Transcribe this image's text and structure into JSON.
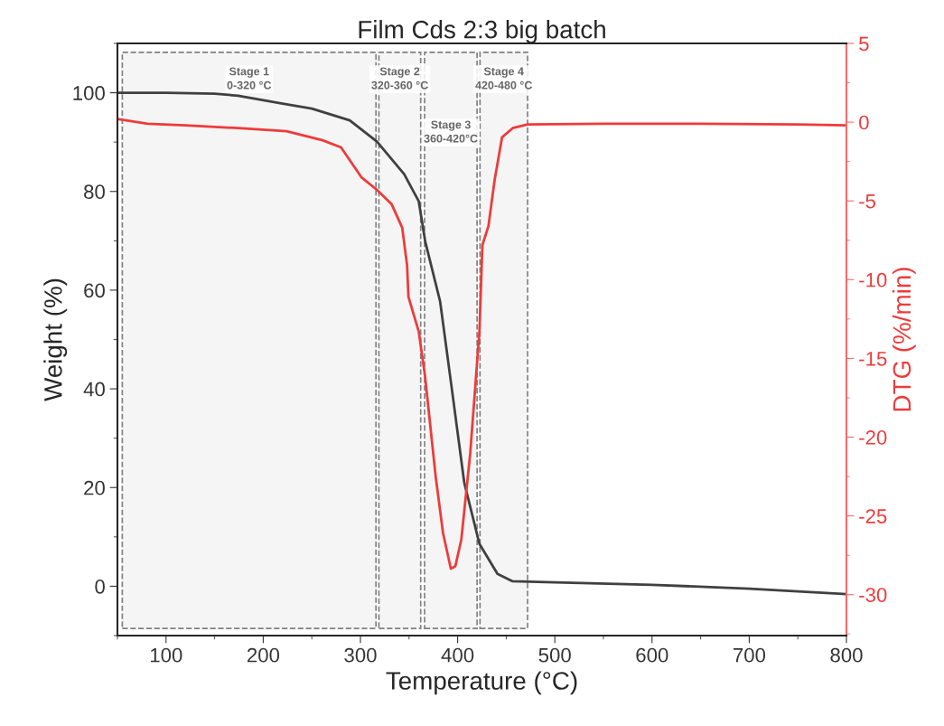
{
  "chart_data": {
    "type": "line",
    "title": "Film Cds 2:3 big batch",
    "xlabel": "Temperature (°C)",
    "ylabel": "Weight (%)",
    "y2label": "DTG (%/min)",
    "xlim": [
      50,
      800
    ],
    "xticks": [
      100,
      200,
      300,
      400,
      500,
      600,
      700,
      800
    ],
    "ylim": [
      -10,
      110
    ],
    "yticks": [
      0,
      20,
      40,
      60,
      80,
      100
    ],
    "y2lim": [
      -32.6,
      5
    ],
    "y2ticks": [
      -30,
      -25,
      -20,
      -15,
      -10,
      -5,
      0,
      5
    ],
    "grid": false,
    "legend": false,
    "marker": "none",
    "line_style": "solid",
    "series": [
      {
        "color": "#404040",
        "x": [
          50,
          100,
          150,
          174,
          220,
          250,
          289,
          317,
          345,
          360,
          366.6,
          382,
          394.5,
          406.8,
          422.4,
          441,
          456.6,
          500,
          600,
          700,
          800
        ],
        "values": [
          100,
          100,
          99.8,
          99.4,
          97.8,
          96.8,
          94.4,
          90.1,
          83.5,
          78,
          69.9,
          57.7,
          39.3,
          21,
          8.6,
          2.5,
          1.0,
          0.8,
          0.3,
          -0.5,
          -1.6
        ]
      },
      {
        "color": "#ee3b3b",
        "axis": "y2",
        "x": [
          50,
          81,
          120,
          174,
          224,
          261,
          280,
          301,
          317,
          332,
          343,
          348,
          349.4,
          360,
          366.6,
          377.4,
          385,
          393,
          397.6,
          403.8,
          413,
          422.4,
          425.5,
          431.7,
          438,
          445.7,
          456.6,
          472,
          550,
          650,
          750,
          800
        ],
        "values": [
          0.2,
          -0.1,
          -0.2,
          -0.38,
          -0.57,
          -1.15,
          -1.6,
          -3.5,
          -4.3,
          -5.2,
          -6.7,
          -9.1,
          -11.1,
          -13.3,
          -16.2,
          -22.5,
          -26.1,
          -28.35,
          -28.2,
          -26.5,
          -21,
          -13.3,
          -7.8,
          -6.6,
          -3.7,
          -0.96,
          -0.38,
          -0.15,
          -0.1,
          -0.1,
          -0.15,
          -0.2
        ]
      }
    ],
    "bands": [
      {
        "axis": "x",
        "from": 55,
        "to": 316,
        "label": "Stage 1\n0-320 °C",
        "color": "#808080"
      },
      {
        "axis": "x",
        "from": 319,
        "to": 362,
        "label": "Stage 2\n320-360 °C",
        "color": "#808080"
      },
      {
        "axis": "x",
        "from": 366,
        "to": 420,
        "label": "Stage 3\n360-420°C",
        "color": "#808080"
      },
      {
        "axis": "x",
        "from": 423,
        "to": 472,
        "label": "Stage 4\n420-480 °C",
        "color": "#808080"
      }
    ]
  }
}
